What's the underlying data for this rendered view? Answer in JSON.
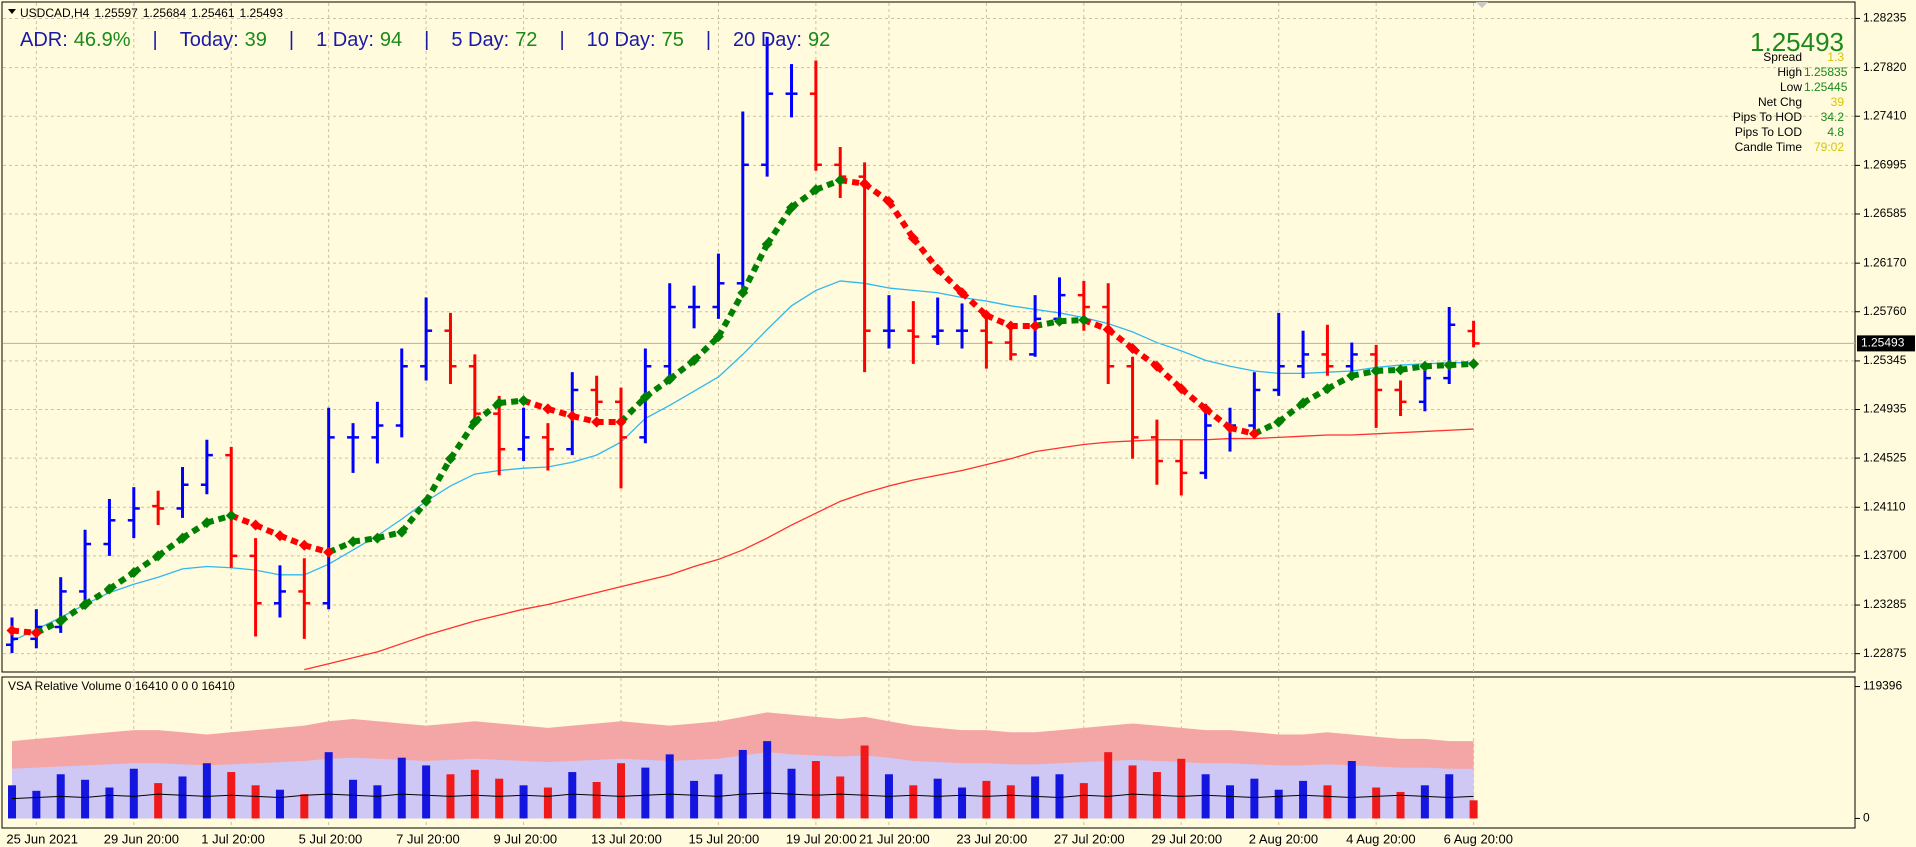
{
  "chart_data": [
    {
      "type": "ohlc",
      "symbol": "USDCAD,H4",
      "categories": [
        null,
        "25 Jun 2021",
        null,
        null,
        null,
        "29 Jun 20:00",
        null,
        null,
        null,
        "1 Jul 20:00",
        null,
        null,
        null,
        "5 Jul 20:00",
        null,
        null,
        null,
        "7 Jul 20:00",
        null,
        null,
        null,
        "9 Jul 20:00",
        null,
        null,
        null,
        "13 Jul 20:00",
        null,
        null,
        null,
        "15 Jul 20:00",
        null,
        null,
        null,
        "19 Jul 20:00",
        null,
        null,
        "21 Jul 20:00",
        null,
        null,
        null,
        "23 Jul 20:00",
        null,
        null,
        null,
        "27 Jul 20:00",
        null,
        null,
        null,
        "29 Jul 20:00",
        null,
        null,
        null,
        "2 Aug 20:00",
        null,
        null,
        null,
        "4 Aug 20:00",
        null,
        null,
        null,
        "6 Aug 20:00"
      ],
      "open": [
        1.2295,
        1.23,
        1.231,
        1.234,
        1.238,
        1.24,
        1.2412,
        1.241,
        1.243,
        1.2455,
        1.237,
        1.233,
        1.234,
        1.233,
        1.247,
        1.247,
        1.248,
        1.253,
        1.256,
        1.253,
        1.249,
        1.246,
        1.247,
        1.246,
        1.251,
        1.25,
        1.247,
        1.253,
        1.258,
        1.258,
        1.26,
        1.27,
        1.276,
        1.276,
        1.27,
        1.269,
        1.256,
        1.256,
        1.2555,
        1.256,
        1.256,
        1.255,
        1.254,
        1.257,
        1.259,
        1.258,
        1.253,
        1.247,
        1.245,
        1.244,
        1.248,
        1.248,
        1.251,
        1.253,
        1.254,
        1.253,
        1.254,
        1.251,
        1.25,
        1.252,
        1.25597
      ],
      "high": [
        1.2318,
        1.2325,
        1.2352,
        1.2392,
        1.2418,
        1.2428,
        1.2425,
        1.2445,
        1.2468,
        1.2462,
        1.2385,
        1.2362,
        1.2368,
        1.2495,
        1.2482,
        1.25,
        1.2545,
        1.2588,
        1.2575,
        1.254,
        1.2505,
        1.2495,
        1.2482,
        1.2525,
        1.2522,
        1.2512,
        1.2545,
        1.26,
        1.2598,
        1.2625,
        1.2745,
        1.2808,
        1.2785,
        1.2788,
        1.2715,
        1.2702,
        1.259,
        1.2585,
        1.2588,
        1.2583,
        1.2572,
        1.2562,
        1.259,
        1.2605,
        1.2602,
        1.26,
        1.2538,
        1.2485,
        1.2468,
        1.2498,
        1.2495,
        1.2525,
        1.2575,
        1.256,
        1.2565,
        1.255,
        1.2548,
        1.2518,
        1.253,
        1.258,
        1.25684
      ],
      "low": [
        1.2288,
        1.2292,
        1.2305,
        1.2332,
        1.237,
        1.2385,
        1.2396,
        1.2402,
        1.2422,
        1.236,
        1.2302,
        1.2318,
        1.23,
        1.2325,
        1.244,
        1.2448,
        1.247,
        1.2518,
        1.2515,
        1.248,
        1.2438,
        1.245,
        1.2442,
        1.2455,
        1.2488,
        1.2427,
        1.2465,
        1.2522,
        1.2562,
        1.257,
        1.2595,
        1.269,
        1.274,
        1.2695,
        1.2672,
        1.2525,
        1.2545,
        1.2532,
        1.2548,
        1.2545,
        1.2528,
        1.2535,
        1.2538,
        1.2565,
        1.256,
        1.2515,
        1.2452,
        1.243,
        1.2421,
        1.2435,
        1.2458,
        1.2472,
        1.2505,
        1.252,
        1.2522,
        1.252,
        1.2478,
        1.2488,
        1.2492,
        1.2515,
        1.25461
      ],
      "close": [
        1.23,
        1.231,
        1.234,
        1.238,
        1.24,
        1.241,
        1.241,
        1.243,
        1.2455,
        1.237,
        1.233,
        1.234,
        1.233,
        1.247,
        1.247,
        1.248,
        1.253,
        1.256,
        1.253,
        1.249,
        1.246,
        1.247,
        1.246,
        1.251,
        1.25,
        1.247,
        1.253,
        1.258,
        1.258,
        1.26,
        1.27,
        1.276,
        1.276,
        1.27,
        1.269,
        1.256,
        1.256,
        1.2555,
        1.256,
        1.256,
        1.255,
        1.254,
        1.257,
        1.259,
        1.258,
        1.253,
        1.247,
        1.245,
        1.244,
        1.248,
        1.248,
        1.251,
        1.253,
        1.254,
        1.253,
        1.254,
        1.251,
        1.25,
        1.252,
        1.2565,
        1.25493
      ],
      "up_color": "#0000ff",
      "down_color": "#ff0000",
      "series": [
        {
          "style": "line",
          "color": "#ff3030",
          "values": [
            null,
            null,
            null,
            null,
            null,
            null,
            null,
            null,
            null,
            null,
            null,
            null,
            1.2274,
            1.2279,
            1.2284,
            1.2289,
            1.2296,
            1.2303,
            1.2309,
            1.2315,
            1.232,
            1.2325,
            1.2329,
            1.2334,
            1.2339,
            1.2344,
            1.2349,
            1.2354,
            1.2361,
            1.2367,
            1.2375,
            1.2385,
            1.2396,
            1.2406,
            1.2416,
            1.2423,
            1.2429,
            1.2434,
            1.2438,
            1.2442,
            1.2447,
            1.2452,
            1.2458,
            1.2461,
            1.2464,
            1.2466,
            1.2467,
            1.2468,
            1.2468,
            1.2468,
            1.2469,
            1.2469,
            1.247,
            1.2471,
            1.2472,
            1.2472,
            1.2473,
            1.2474,
            1.2475,
            1.2476,
            1.2477
          ]
        },
        {
          "style": "line",
          "color": "#30b8f0",
          "values": [
            1.2298,
            1.2308,
            1.2318,
            1.2329,
            1.2339,
            1.2346,
            1.2352,
            1.2359,
            1.2361,
            1.236,
            1.2358,
            1.2354,
            1.2354,
            1.2363,
            1.2375,
            1.2387,
            1.2401,
            1.2416,
            1.2429,
            1.2439,
            1.2442,
            1.2444,
            1.2445,
            1.2449,
            1.2455,
            1.2466,
            1.2486,
            1.2497,
            1.2509,
            1.2521,
            1.254,
            1.2561,
            1.2581,
            1.2594,
            1.2602,
            1.26,
            1.2596,
            1.2594,
            1.2592,
            1.2588,
            1.2585,
            1.2581,
            1.2578,
            1.2575,
            1.2571,
            1.2566,
            1.2559,
            1.255,
            1.2543,
            1.2535,
            1.253,
            1.2526,
            1.2524,
            1.2524,
            1.2525,
            1.2526,
            1.2529,
            1.2531,
            1.2532,
            1.2533,
            1.2533
          ]
        },
        {
          "style": "diamond",
          "up_color": "#008000",
          "down_color": "#ff0000",
          "values": [
            1.2307,
            1.2305,
            1.2315,
            1.2329,
            1.2342,
            1.2356,
            1.237,
            1.2385,
            1.2398,
            1.2404,
            1.2396,
            1.2387,
            1.2379,
            1.2373,
            1.2382,
            1.2385,
            1.239,
            1.2416,
            1.2452,
            1.2483,
            1.2499,
            1.2501,
            1.2494,
            1.2488,
            1.2483,
            1.2483,
            1.2504,
            1.2519,
            1.2535,
            1.2555,
            1.2592,
            1.2633,
            1.2664,
            1.2679,
            1.2687,
            1.2684,
            1.2669,
            1.2638,
            1.2612,
            1.2592,
            1.2573,
            1.2564,
            1.2564,
            1.2568,
            1.2569,
            1.2561,
            1.2545,
            1.253,
            1.2511,
            1.2494,
            1.2478,
            1.2473,
            1.2483,
            1.2499,
            1.2511,
            1.2522,
            1.2526,
            1.2527,
            1.253,
            1.2531,
            1.2532
          ]
        }
      ],
      "ylim": [
        1.2272,
        1.2834
      ],
      "yticks": [
        1.22875,
        1.23285,
        {
          "value": 1.237,
          "label": "1.23700"
        },
        {
          "value": 1.2411,
          "label": "1.24110"
        },
        1.24525,
        1.24935,
        1.25345,
        {
          "value": 1.2576,
          "label": "1.25760"
        },
        {
          "value": 1.2617,
          "label": "1.26170"
        },
        1.26585,
        1.26995,
        {
          "value": 1.2741,
          "label": "1.27410"
        },
        {
          "value": 1.2782,
          "label": "1.27820"
        },
        1.28235
      ],
      "grid": true,
      "current_price_line": true
    },
    {
      "type": "volume",
      "title": "VSA Relative Volume 0 16410 0 0 0 16410",
      "values": [
        30000,
        25000,
        40000,
        35000,
        28000,
        45000,
        32000,
        38000,
        50000,
        42000,
        30000,
        26000,
        22000,
        60000,
        35000,
        30000,
        55000,
        48000,
        40000,
        44000,
        36000,
        30000,
        28000,
        42000,
        33000,
        50000,
        46000,
        58000,
        34000,
        40000,
        62000,
        70000,
        45000,
        52000,
        38000,
        66000,
        40000,
        30000,
        36000,
        28000,
        34000,
        30000,
        38000,
        40000,
        32000,
        60000,
        48000,
        42000,
        54000,
        40000,
        30000,
        36000,
        26000,
        34000,
        30000,
        52000,
        28000,
        24000,
        30000,
        40000,
        16410
      ],
      "up_color": "#1515e0",
      "down_color": "#f01818",
      "series": [
        {
          "style": "area",
          "color": "#f4a6a6",
          "values": [
            70000,
            72000,
            74000,
            76000,
            78000,
            80000,
            80000,
            78000,
            76000,
            78000,
            80000,
            82000,
            84000,
            88000,
            90000,
            88000,
            86000,
            84000,
            86000,
            88000,
            86000,
            84000,
            82000,
            84000,
            86000,
            88000,
            86000,
            84000,
            86000,
            88000,
            92000,
            96000,
            94000,
            92000,
            90000,
            92000,
            88000,
            84000,
            82000,
            80000,
            80000,
            78000,
            78000,
            80000,
            82000,
            84000,
            86000,
            84000,
            82000,
            80000,
            80000,
            78000,
            76000,
            76000,
            78000,
            76000,
            74000,
            72000,
            72000,
            70000,
            70000
          ]
        },
        {
          "style": "area",
          "color": "#cfc8f4",
          "values": [
            45000,
            46000,
            47000,
            48000,
            49000,
            50000,
            50000,
            49000,
            48000,
            49000,
            50000,
            51000,
            52000,
            54000,
            55000,
            54000,
            53000,
            52000,
            53000,
            54000,
            53000,
            52000,
            51000,
            52000,
            53000,
            54000,
            53000,
            52000,
            53000,
            54000,
            57000,
            60000,
            58000,
            57000,
            56000,
            57000,
            55000,
            52000,
            51000,
            50000,
            50000,
            49000,
            49000,
            50000,
            51000,
            52000,
            53000,
            52000,
            51000,
            50000,
            50000,
            49000,
            48000,
            48000,
            49000,
            48000,
            47000,
            46000,
            46000,
            45000,
            45000
          ]
        },
        {
          "style": "line",
          "color": "#000000",
          "values": [
            18000,
            19000,
            20000,
            19000,
            21000,
            20000,
            22000,
            21000,
            20000,
            21000,
            20000,
            19000,
            21000,
            22000,
            21000,
            20000,
            22000,
            21000,
            20000,
            21000,
            20000,
            21000,
            20000,
            22000,
            21000,
            20000,
            21000,
            22000,
            21000,
            20000,
            22000,
            23000,
            22000,
            21000,
            22000,
            21000,
            20000,
            21000,
            20000,
            21000,
            20000,
            21000,
            20000,
            19000,
            21000,
            20000,
            22000,
            21000,
            20000,
            21000,
            20000,
            19000,
            20000,
            21000,
            20000,
            19000,
            20000,
            21000,
            20000,
            19000,
            20000
          ]
        }
      ],
      "ylim": [
        -7739,
        127135
      ],
      "yticks": [
        0,
        119396
      ]
    }
  ],
  "overlay": {
    "separator": "|",
    "adr": [
      {
        "label": "ADR:",
        "value": "46.9%"
      },
      {
        "label": "Today:",
        "value": "39"
      },
      {
        "label": "1 Day:",
        "value": "94"
      },
      {
        "label": "5 Day:",
        "value": "72"
      },
      {
        "label": "10 Day:",
        "value": "75"
      },
      {
        "label": "20 Day:",
        "value": "92"
      }
    ],
    "info": [
      {
        "label": "Spread",
        "value": "1.3",
        "color": "#d8c400"
      },
      {
        "label": "High",
        "value": "1.25835",
        "color": "#1a8a1a"
      },
      {
        "label": "Low",
        "value": "1.25445",
        "color": "#1a8a1a"
      },
      {
        "label": "Net Chg",
        "value": "39",
        "color": "#d8c400"
      },
      {
        "label": "Pips To HOD",
        "value": "34.2",
        "color": "#1a8a1a"
      },
      {
        "label": "Pips To LOD",
        "value": "4.8",
        "color": "#1a8a1a"
      },
      {
        "label": "Candle Time",
        "value": "79:02",
        "color": "#d8c400"
      }
    ]
  }
}
